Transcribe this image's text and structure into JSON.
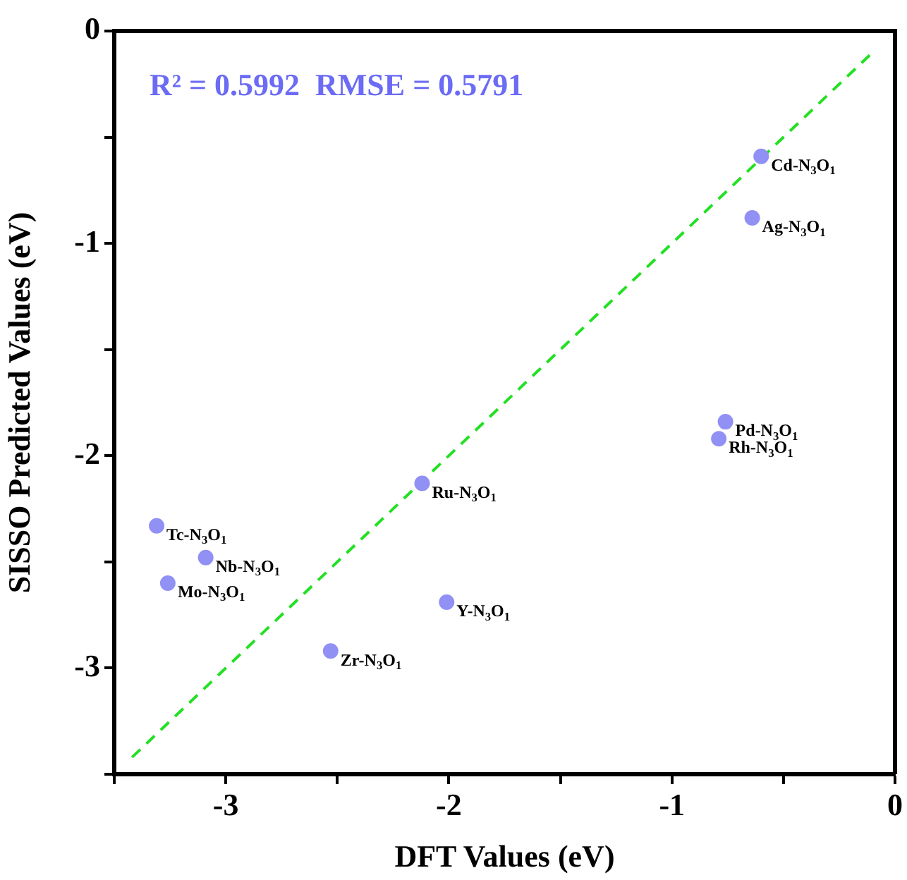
{
  "chart_data": {
    "type": "scatter",
    "xlabel": "DFT Values (eV)",
    "ylabel": "SISSO Predicted Values (eV)",
    "xlim": [
      -3.5,
      0
    ],
    "ylim": [
      -3.5,
      0
    ],
    "xticks": [
      {
        "value": -3.5,
        "label": null
      },
      -3,
      {
        "value": -2.5,
        "label": null
      },
      -2,
      {
        "value": -1.5,
        "label": null
      },
      -1,
      {
        "value": -0.5,
        "label": null
      },
      0
    ],
    "yticks": [
      {
        "value": -3.5,
        "label": null
      },
      -3,
      {
        "value": -2.5,
        "label": null
      },
      -2,
      {
        "value": -1.5,
        "label": null
      },
      -1,
      {
        "value": -0.5,
        "label": null
      },
      0
    ],
    "grid": false,
    "legend": false,
    "marker": "circle",
    "series": [
      {
        "color": "#9090f5",
        "x": [
          -0.6,
          -0.64,
          -0.76,
          -0.79,
          -2.12,
          -3.31,
          -3.09,
          -3.26,
          -2.01,
          -2.53
        ],
        "values": [
          -0.59,
          -0.88,
          -1.84,
          -1.92,
          -2.13,
          -2.33,
          -2.48,
          -2.6,
          -2.69,
          -2.92
        ]
      },
      {
        "type": "line",
        "color": "#22e022",
        "line_style": "dashed",
        "marker": "none",
        "x": [
          -3.42,
          -0.09
        ],
        "values": [
          -3.42,
          -0.09
        ]
      }
    ],
    "annotations": [
      "R² = 0.5992  RMSE = 0.5791",
      {
        "text": "Cd-N$_{3}$O$_{1}$",
        "x": -0.6,
        "y": -0.59
      },
      {
        "text": "Ag-N$_{3}$O$_{1}$",
        "x": -0.64,
        "y": -0.88
      },
      {
        "text": "Pd-N$_{3}$O$_{1}$",
        "x": -0.76,
        "y": -1.84
      },
      {
        "text": "Rh-N$_{3}$O$_{1}$",
        "x": -0.79,
        "y": -1.92
      },
      {
        "text": "Ru-N$_{3}$O$_{1}$",
        "x": -2.12,
        "y": -2.13
      },
      {
        "text": "Tc-N$_{3}$O$_{1}$",
        "x": -3.31,
        "y": -2.33
      },
      {
        "text": "Nb-N$_{3}$O$_{1}$",
        "x": -3.09,
        "y": -2.48
      },
      {
        "text": "Mo-N$_{3}$O$_{1}$",
        "x": -3.26,
        "y": -2.6
      },
      {
        "text": "Y-N$_{3}$O$_{1}$",
        "x": -2.01,
        "y": -2.69
      },
      {
        "text": "Zr-N$_{3}$O$_{1}$",
        "x": -2.53,
        "y": -2.92
      }
    ]
  }
}
